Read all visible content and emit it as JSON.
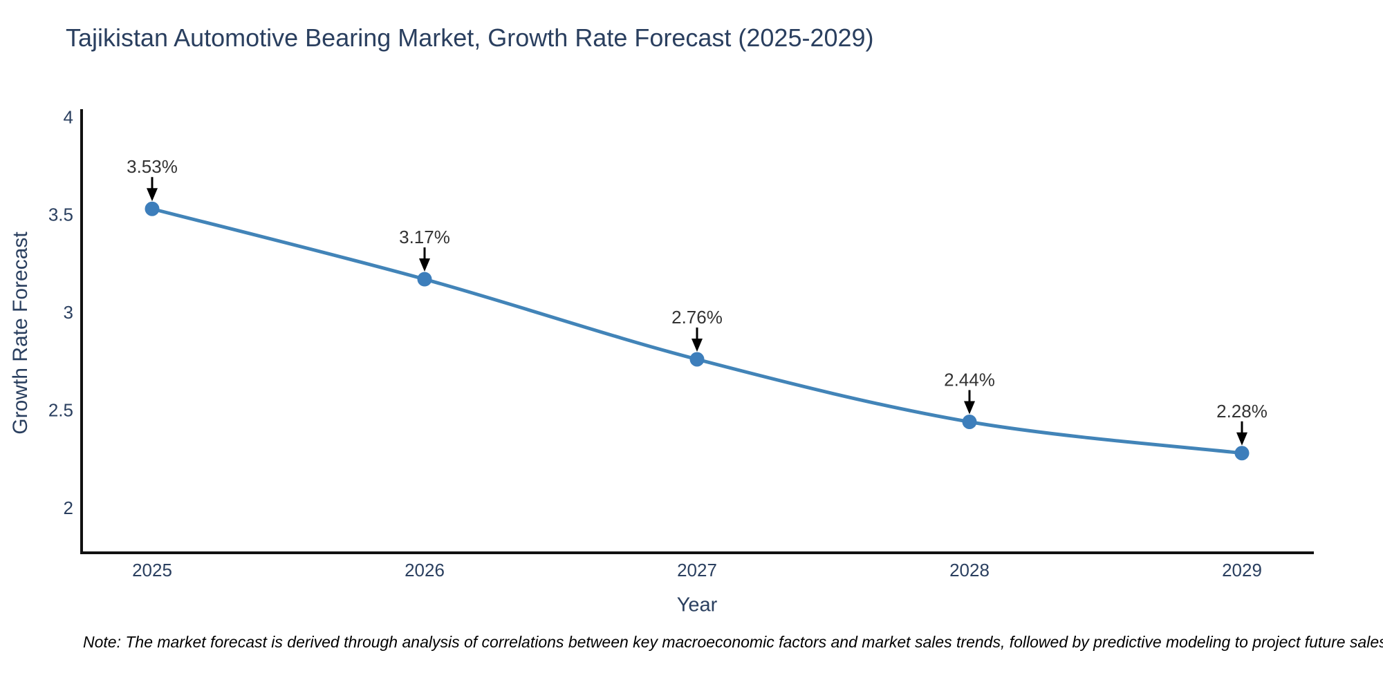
{
  "title": "Tajikistan Automotive Bearing Market, Growth Rate Forecast (2025-2029)",
  "note": "Note: The market forecast is derived through analysis of correlations between key macroeconomic factors and market sales trends, followed by predictive modeling to project future sales",
  "chart_data": {
    "type": "line",
    "title": "Tajikistan Automotive Bearing Market, Growth Rate Forecast (2025-2029)",
    "xlabel": "Year",
    "ylabel": "Growth Rate Forecast",
    "x": [
      "2025",
      "2026",
      "2027",
      "2028",
      "2029"
    ],
    "values": [
      3.53,
      3.17,
      2.76,
      2.44,
      2.28
    ],
    "point_labels": [
      "3.53%",
      "3.17%",
      "2.76%",
      "2.44%",
      "2.28%"
    ],
    "yticks": [
      4,
      3.5,
      3,
      2.5,
      2
    ],
    "ylim": [
      1.77,
      4.04
    ],
    "line_shape": "spline",
    "grid": false,
    "legend": "none",
    "colors": {
      "line": "#4284b8",
      "marker": "#3d7ebb",
      "axis": "#111111",
      "tick_text": "#2a3f5f",
      "annotation_text": "#333333",
      "arrow": "#000000"
    }
  }
}
